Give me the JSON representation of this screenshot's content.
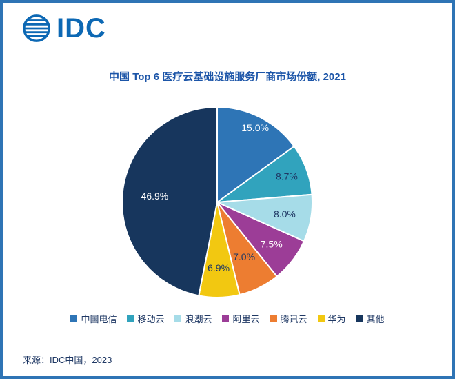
{
  "brand": {
    "logo_text": "IDC",
    "logo_color": "#0C68B4"
  },
  "title": {
    "text": "中国 Top 6 医疗云基础设施服务厂商市场份额, 2021",
    "color": "#1C55A8"
  },
  "source": {
    "text": "来源：IDC中国，2023"
  },
  "frame": {
    "border_color": "#2E74B5",
    "background": "#FFFFFF"
  },
  "chart_data": {
    "type": "pie",
    "title": "中国 Top 6 医疗云基础设施服务厂商市场份额, 2021",
    "start_angle_deg": 0,
    "direction": "clockwise",
    "legend_position": "bottom",
    "total": 100.0,
    "slices": [
      {
        "label": "中国电信",
        "value": 15.0,
        "display": "15.0%",
        "color": "#2E75B6",
        "label_color": "#FFFFFF",
        "label_r": 0.88
      },
      {
        "label": "移动云",
        "value": 8.7,
        "display": "8.7%",
        "color": "#31A3BD",
        "label_color": "#1F3864",
        "label_r": 0.78
      },
      {
        "label": "浪潮云",
        "value": 8.0,
        "display": "8.0%",
        "color": "#A6DCE8",
        "label_color": "#1F3864",
        "label_r": 0.72
      },
      {
        "label": "阿里云",
        "value": 7.5,
        "display": "7.5%",
        "color": "#9C3D97",
        "label_color": "#FFFFFF",
        "label_r": 0.72
      },
      {
        "label": "腾讯云",
        "value": 7.0,
        "display": "7.0%",
        "color": "#ED7D31",
        "label_color": "#1F3864",
        "label_r": 0.64
      },
      {
        "label": "华为",
        "value": 6.9,
        "display": "6.9%",
        "color": "#F2C811",
        "label_color": "#1F3864",
        "label_r": 0.69
      },
      {
        "label": "其他",
        "value": 46.9,
        "display": "46.9%",
        "color": "#17365D",
        "label_color": "#FFFFFF",
        "label_r": 0.66
      }
    ]
  }
}
